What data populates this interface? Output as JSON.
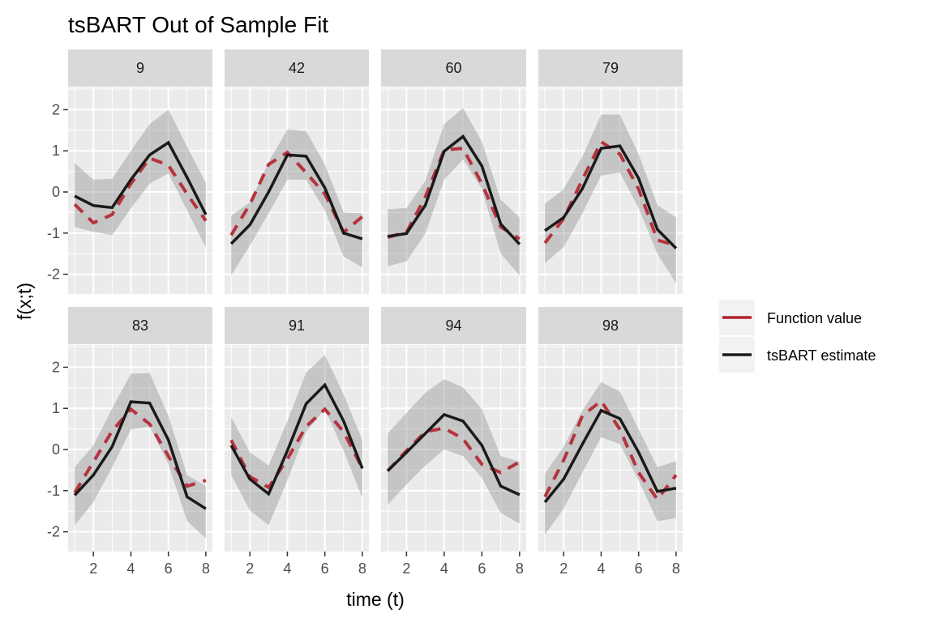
{
  "chart_data": {
    "type": "line",
    "title": "tsBART Out of Sample Fit",
    "xlabel": "time (t)",
    "ylabel": "f(x;t)",
    "x": [
      1,
      2,
      3,
      4,
      5,
      6,
      7,
      8
    ],
    "xlim": [
      0.65,
      8.35
    ],
    "ylim": [
      -2.48,
      2.54
    ],
    "x_ticks": [
      2,
      4,
      6,
      8
    ],
    "y_ticks": [
      -2,
      -1,
      0,
      1,
      2
    ],
    "x_tick_labels": [
      "2",
      "4",
      "6",
      "8"
    ],
    "y_tick_labels": [
      "-2",
      "-1",
      "0",
      "1",
      "2"
    ],
    "grid": true,
    "facet_layout": {
      "rows": 2,
      "cols": 4
    },
    "legend": {
      "position": "right",
      "entries": [
        {
          "label": "Function value",
          "color": "#b2222f",
          "style": "dashed"
        },
        {
          "label": "tsBART estimate",
          "color": "#1a1a1a",
          "style": "solid"
        }
      ]
    },
    "colors": {
      "function_value": "#b2222f",
      "estimate": "#1a1a1a",
      "band": "#bdbdbd",
      "panel_bg": "#ebebeb",
      "strip_bg": "#d9d9d9"
    },
    "panels": [
      {
        "label": "9",
        "function_value": [
          -0.3,
          -0.75,
          -0.55,
          0.2,
          0.82,
          0.65,
          -0.05,
          -0.7
        ],
        "estimate": [
          -0.1,
          -0.33,
          -0.38,
          0.3,
          0.9,
          1.2,
          0.35,
          -0.55
        ],
        "band_upper": [
          0.7,
          0.3,
          0.32,
          1.0,
          1.65,
          2.0,
          1.1,
          0.22
        ],
        "band_lower": [
          -0.85,
          -0.97,
          -1.05,
          -0.4,
          0.2,
          0.45,
          -0.45,
          -1.35
        ]
      },
      {
        "label": "42",
        "function_value": [
          -1.05,
          -0.3,
          0.67,
          0.96,
          0.47,
          -0.05,
          -0.98,
          -0.6
        ],
        "estimate": [
          -1.26,
          -0.8,
          0.0,
          0.9,
          0.87,
          0.1,
          -1.0,
          -1.14
        ],
        "band_upper": [
          -0.58,
          -0.25,
          0.73,
          1.52,
          1.48,
          0.67,
          -0.5,
          -0.52
        ],
        "band_lower": [
          -2.03,
          -1.3,
          -0.52,
          0.3,
          0.3,
          -0.45,
          -1.57,
          -1.83
        ]
      },
      {
        "label": "60",
        "function_value": [
          -1.1,
          -0.98,
          -0.12,
          1.02,
          1.06,
          0.2,
          -0.85,
          -1.14
        ],
        "estimate": [
          -1.08,
          -1.01,
          -0.32,
          0.99,
          1.35,
          0.63,
          -0.78,
          -1.27
        ],
        "band_upper": [
          -0.42,
          -0.39,
          0.27,
          1.65,
          2.04,
          1.22,
          -0.19,
          -0.62
        ],
        "band_lower": [
          -1.8,
          -1.69,
          -1.01,
          0.3,
          0.79,
          0.07,
          -1.5,
          -2.03
        ]
      },
      {
        "label": "79",
        "function_value": [
          -1.24,
          -0.65,
          0.3,
          1.22,
          0.92,
          0.07,
          -1.17,
          -1.3
        ],
        "estimate": [
          -0.94,
          -0.62,
          0.08,
          1.06,
          1.12,
          0.33,
          -0.91,
          -1.37
        ],
        "band_upper": [
          -0.29,
          0.07,
          0.86,
          1.88,
          1.88,
          0.92,
          -0.32,
          -0.62
        ],
        "band_lower": [
          -1.73,
          -1.34,
          -0.52,
          0.4,
          0.47,
          -0.39,
          -1.5,
          -2.22
        ]
      },
      {
        "label": "83",
        "function_value": [
          -1.05,
          -0.3,
          0.45,
          0.98,
          0.62,
          -0.16,
          -0.89,
          -0.75
        ],
        "estimate": [
          -1.11,
          -0.62,
          0.07,
          1.16,
          1.13,
          0.23,
          -1.15,
          -1.44
        ],
        "band_upper": [
          -0.43,
          0.1,
          1.0,
          1.84,
          1.86,
          0.82,
          -0.62,
          -0.89
        ],
        "band_lower": [
          -1.84,
          -1.28,
          -0.43,
          0.49,
          0.56,
          -0.36,
          -1.74,
          -2.16
        ]
      },
      {
        "label": "91",
        "function_value": [
          0.23,
          -0.66,
          -0.92,
          -0.23,
          0.56,
          0.98,
          0.43,
          -0.46
        ],
        "estimate": [
          0.1,
          -0.72,
          -1.08,
          -0.03,
          1.11,
          1.57,
          0.69,
          -0.46
        ],
        "band_upper": [
          0.79,
          -0.07,
          -0.39,
          0.69,
          1.87,
          2.3,
          1.34,
          0.23
        ],
        "band_lower": [
          -0.62,
          -1.48,
          -1.84,
          -0.75,
          0.43,
          0.98,
          -0.03,
          -1.18
        ]
      },
      {
        "label": "94",
        "function_value": [
          -0.52,
          -0.03,
          0.43,
          0.52,
          0.26,
          -0.36,
          -0.56,
          -0.3
        ],
        "estimate": [
          -0.52,
          -0.07,
          0.39,
          0.85,
          0.69,
          0.1,
          -0.89,
          -1.1
        ],
        "band_upper": [
          0.39,
          0.89,
          1.38,
          1.71,
          1.51,
          0.98,
          -0.16,
          -0.3
        ],
        "band_lower": [
          -1.34,
          -0.85,
          -0.39,
          0.0,
          -0.16,
          -0.69,
          -1.54,
          -1.8
        ]
      },
      {
        "label": "98",
        "function_value": [
          -1.15,
          -0.26,
          0.82,
          1.18,
          0.49,
          -0.56,
          -1.21,
          -0.62
        ],
        "estimate": [
          -1.28,
          -0.72,
          0.13,
          0.95,
          0.75,
          -0.07,
          -1.02,
          -0.94
        ],
        "band_upper": [
          -0.59,
          0.07,
          0.95,
          1.64,
          1.41,
          0.49,
          -0.43,
          -0.28
        ],
        "band_lower": [
          -2.07,
          -1.44,
          -0.56,
          0.3,
          0.13,
          -0.75,
          -1.74,
          -1.67
        ]
      }
    ]
  }
}
